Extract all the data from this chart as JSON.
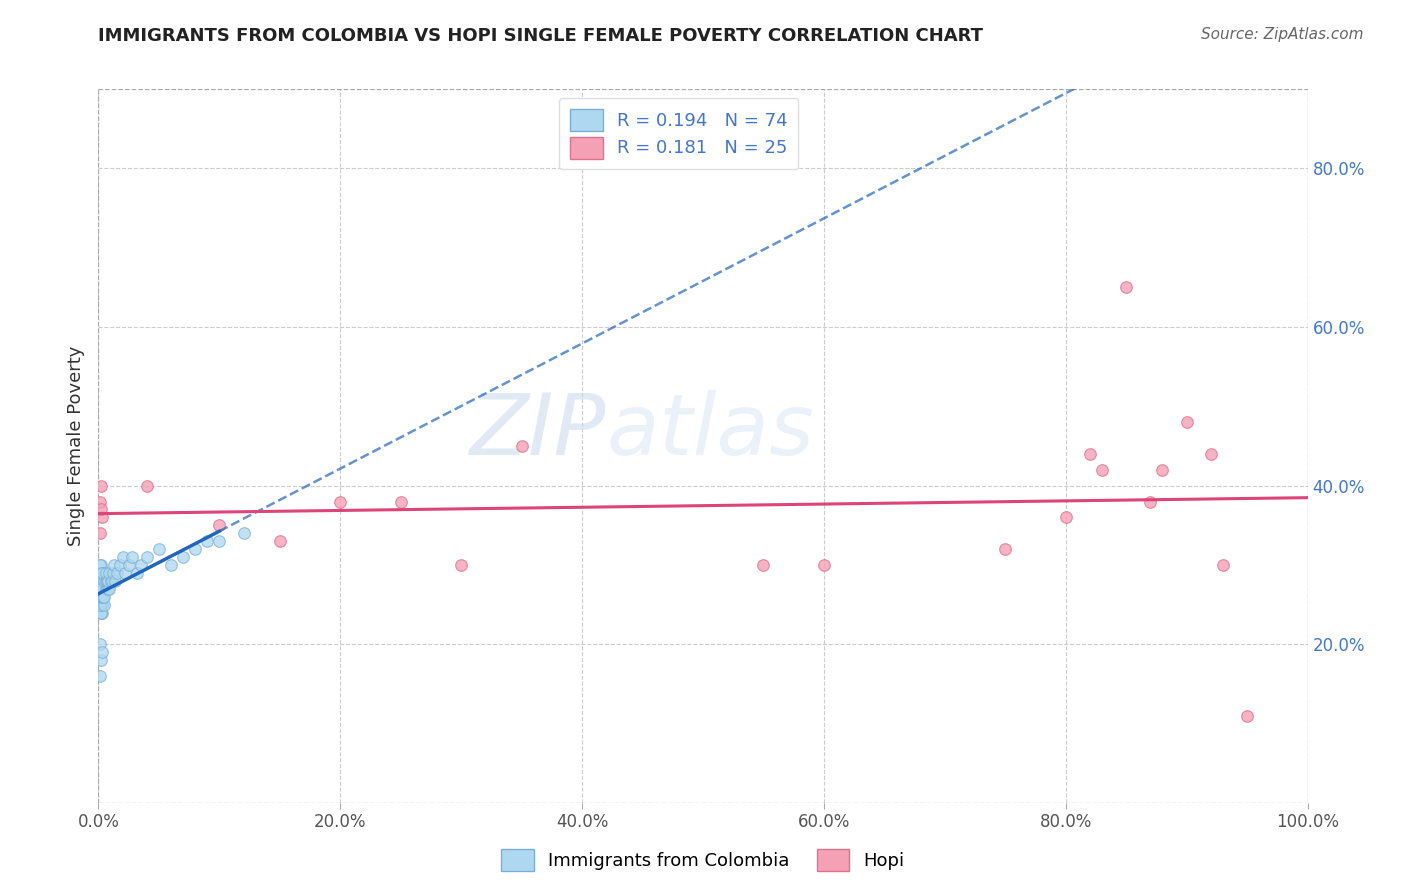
{
  "title": "IMMIGRANTS FROM COLOMBIA VS HOPI SINGLE FEMALE POVERTY CORRELATION CHART",
  "source": "Source: ZipAtlas.com",
  "ylabel": "Single Female Poverty",
  "xlim": [
    0.0,
    1.0
  ],
  "ylim": [
    0.0,
    0.9
  ],
  "xticks": [
    0.0,
    0.2,
    0.4,
    0.6,
    0.8,
    1.0
  ],
  "xticklabels": [
    "0.0%",
    "20.0%",
    "40.0%",
    "60.0%",
    "80.0%",
    "100.0%"
  ],
  "yticks": [
    0.2,
    0.4,
    0.6,
    0.8
  ],
  "yticklabels": [
    "20.0%",
    "40.0%",
    "60.0%",
    "80.0%"
  ],
  "colombia_color": "#ADD8F0",
  "hopi_color": "#F4A0B5",
  "colombia_edge": "#7BAED4",
  "hopi_edge": "#E07090",
  "trendline_colombia_color": "#2266BB",
  "trendline_hopi_color": "#DD4477",
  "R_colombia": 0.194,
  "N_colombia": 74,
  "R_hopi": 0.181,
  "N_hopi": 25,
  "watermark_zip": "ZIP",
  "watermark_atlas": "atlas",
  "background_color": "#FFFFFF",
  "colombia_x": [
    0.002,
    0.003,
    0.001,
    0.002,
    0.001,
    0.003,
    0.002,
    0.001,
    0.003,
    0.001,
    0.004,
    0.002,
    0.001,
    0.003,
    0.002,
    0.001,
    0.004,
    0.002,
    0.003,
    0.001,
    0.002,
    0.003,
    0.004,
    0.001,
    0.002,
    0.005,
    0.003,
    0.002,
    0.001,
    0.004,
    0.003,
    0.002,
    0.001,
    0.005,
    0.004,
    0.003,
    0.006,
    0.005,
    0.004,
    0.003,
    0.007,
    0.006,
    0.005,
    0.008,
    0.007,
    0.006,
    0.009,
    0.008,
    0.01,
    0.009,
    0.011,
    0.012,
    0.013,
    0.014,
    0.015,
    0.018,
    0.02,
    0.022,
    0.025,
    0.028,
    0.032,
    0.035,
    0.04,
    0.05,
    0.06,
    0.07,
    0.08,
    0.09,
    0.1,
    0.12,
    0.001,
    0.002,
    0.003,
    0.001
  ],
  "colombia_y": [
    0.28,
    0.27,
    0.26,
    0.29,
    0.25,
    0.26,
    0.24,
    0.27,
    0.25,
    0.28,
    0.26,
    0.3,
    0.29,
    0.24,
    0.28,
    0.26,
    0.27,
    0.25,
    0.29,
    0.3,
    0.27,
    0.28,
    0.26,
    0.25,
    0.26,
    0.27,
    0.28,
    0.24,
    0.25,
    0.27,
    0.26,
    0.28,
    0.27,
    0.25,
    0.29,
    0.26,
    0.27,
    0.28,
    0.26,
    0.29,
    0.27,
    0.28,
    0.26,
    0.27,
    0.28,
    0.29,
    0.27,
    0.28,
    0.28,
    0.29,
    0.28,
    0.29,
    0.3,
    0.28,
    0.29,
    0.3,
    0.31,
    0.29,
    0.3,
    0.31,
    0.29,
    0.3,
    0.31,
    0.32,
    0.3,
    0.31,
    0.32,
    0.33,
    0.33,
    0.34,
    0.2,
    0.18,
    0.19,
    0.16
  ],
  "hopi_x": [
    0.001,
    0.002,
    0.003,
    0.001,
    0.002,
    0.04,
    0.25,
    0.55,
    0.8,
    0.82,
    0.85,
    0.88,
    0.9,
    0.92,
    0.95,
    0.1,
    0.15,
    0.2,
    0.3,
    0.35,
    0.6,
    0.75,
    0.83,
    0.87,
    0.93
  ],
  "hopi_y": [
    0.38,
    0.4,
    0.36,
    0.34,
    0.37,
    0.4,
    0.38,
    0.3,
    0.36,
    0.44,
    0.65,
    0.42,
    0.48,
    0.44,
    0.11,
    0.35,
    0.33,
    0.38,
    0.3,
    0.45,
    0.3,
    0.32,
    0.42,
    0.38,
    0.3
  ]
}
